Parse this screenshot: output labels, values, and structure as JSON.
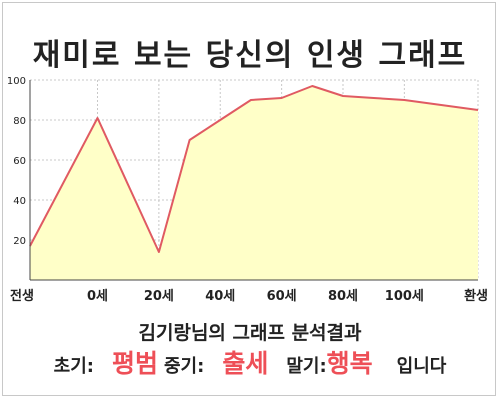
{
  "chart_data": {
    "type": "area",
    "title": "재미로 보는 당신의 인생 그래프",
    "xlabel": "",
    "ylabel": "",
    "x_ticks": [
      "전생",
      "0세",
      "20세",
      "40세",
      "60세",
      "80세",
      "100세",
      "환생"
    ],
    "y_ticks": [
      20,
      40,
      60,
      80,
      100
    ],
    "ylim": [
      0,
      100
    ],
    "grid": true,
    "points": [
      {
        "x": "전생",
        "y": 17
      },
      {
        "x": "0세",
        "y": 81
      },
      {
        "x": "20세",
        "y": 14
      },
      {
        "x": "30세",
        "y": 70
      },
      {
        "x": "40세",
        "y": 80
      },
      {
        "x": "50세",
        "y": 90
      },
      {
        "x": "60세",
        "y": 91
      },
      {
        "x": "70세",
        "y": 97
      },
      {
        "x": "80세",
        "y": 92
      },
      {
        "x": "90세",
        "y": 91
      },
      {
        "x": "100세",
        "y": 90
      },
      {
        "x": "환생",
        "y": 85
      }
    ],
    "colors": {
      "line": "#e05a62",
      "fill": "#ffffc8",
      "grid": "#c8c8c8"
    }
  },
  "subtitle": "김기랑님의 그래프 분석결과",
  "summary": {
    "early_label": "초기:",
    "early_value": "평범",
    "middle_label": "중기:",
    "middle_value": "출세",
    "late_label": "말기:",
    "late_value": "행복",
    "suffix": "입니다"
  }
}
